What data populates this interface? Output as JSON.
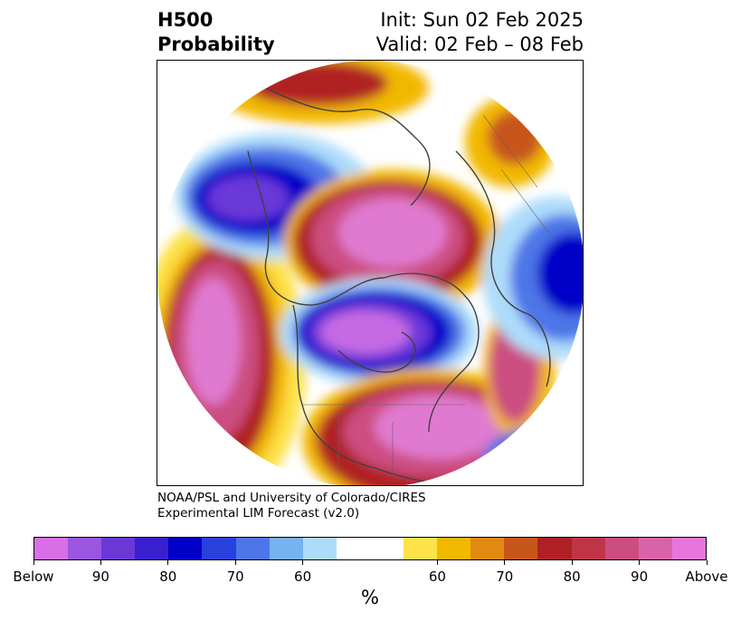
{
  "title": {
    "left_line1": "H500",
    "left_line2": "Probability",
    "right_line1": "Init: Sun 02 Feb 2025",
    "right_line2": "Valid: 02 Feb – 08 Feb"
  },
  "credit": {
    "line1": "NOAA/PSL and University of Colorado/CIRES",
    "line2": "Experimental LIM Forecast (v2.0)"
  },
  "colorbar": {
    "units": "%",
    "ticks": [
      "Below",
      "90",
      "80",
      "70",
      "60",
      "60",
      "70",
      "80",
      "90",
      "Above"
    ],
    "below_colors": [
      "#d86fe6",
      "#9b56e0",
      "#6b38d8",
      "#3a1fd0",
      "#0000c8",
      "#2840dc",
      "#4e76e8",
      "#76b1f0",
      "#addcfa"
    ],
    "neutral_color": "#ffffff",
    "above_colors": [
      "#fde24a",
      "#f2b800",
      "#e08a12",
      "#c8561c",
      "#b02024",
      "#c03448",
      "#cc4e80",
      "#da62a8",
      "#e676dc"
    ]
  },
  "map": {
    "projection": "north-polar-stereographic",
    "coastline_color": "#404040"
  }
}
